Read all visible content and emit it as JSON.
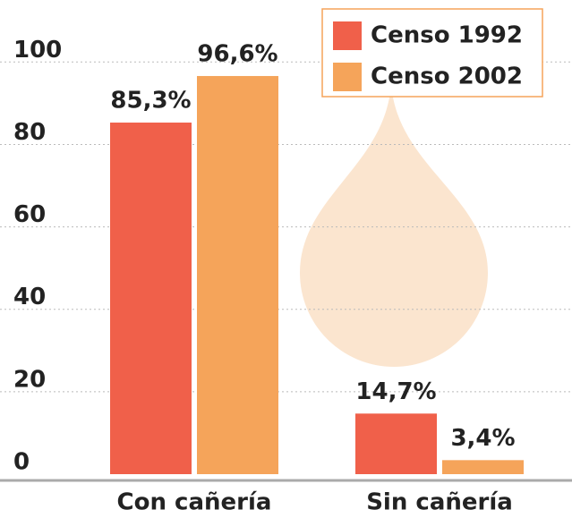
{
  "chart_data": {
    "type": "bar",
    "categories": [
      "Con cañería",
      "Sin cañería"
    ],
    "series": [
      {
        "name": "Censo 1992",
        "color": "#f0604a",
        "values": [
          85.3,
          14.7
        ],
        "value_labels": [
          "85,3%",
          "14,7%"
        ]
      },
      {
        "name": "Censo 2002",
        "color": "#f5a45a",
        "values": [
          96.6,
          3.4
        ],
        "value_labels": [
          "96,6%",
          "3,4%"
        ]
      }
    ],
    "ylim": [
      0,
      100
    ],
    "yticks": [
      0,
      20,
      40,
      60,
      80,
      100
    ],
    "grid": true
  }
}
